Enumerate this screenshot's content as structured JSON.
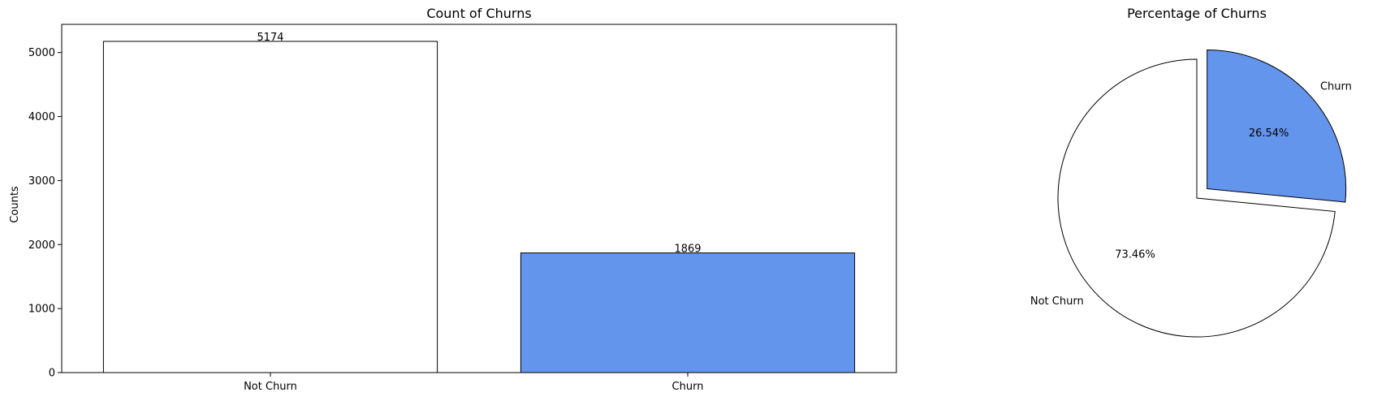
{
  "chart_data": [
    {
      "type": "bar",
      "title": "Count of Churns",
      "xlabel": "",
      "ylabel": "Counts",
      "categories": [
        "Not Churn",
        "Churn"
      ],
      "values": [
        5174,
        1869
      ],
      "value_labels": [
        "5174",
        "1869"
      ],
      "colors": [
        "#ffffff",
        "#6495ed"
      ],
      "ylim": [
        0,
        5440
      ],
      "yticks": [
        0,
        1000,
        2000,
        3000,
        4000,
        5000
      ],
      "grid": false
    },
    {
      "type": "pie",
      "title": "Percentage of Churns",
      "labels": [
        "Not Churn",
        "Churn"
      ],
      "values": [
        73.46,
        26.54
      ],
      "value_labels": [
        "73.46%",
        "26.54%"
      ],
      "colors": [
        "#ffffff",
        "#6495ed"
      ],
      "exploded": [
        "Churn"
      ]
    }
  ]
}
